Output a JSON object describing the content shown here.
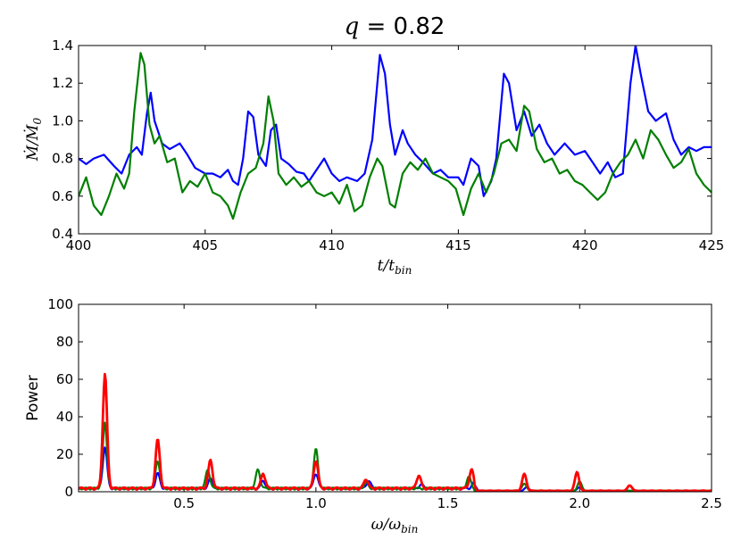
{
  "title": {
    "var": "q",
    "eq": " = ",
    "value": "0.82"
  },
  "colors": {
    "blue": "#0000ff",
    "green": "#007f00",
    "red": "#ff0000"
  },
  "chart_data": [
    {
      "type": "line",
      "xlabel": "t/t_bin",
      "ylabel": "Ṁ/Ṁ0",
      "xlim": [
        400,
        425
      ],
      "ylim": [
        0.4,
        1.4
      ],
      "xticks": [
        "400",
        "405",
        "410",
        "415",
        "420",
        "425"
      ],
      "yticks": [
        "0.4",
        "0.6",
        "0.8",
        "1.0",
        "1.2",
        "1.4"
      ],
      "grid": false,
      "series": [
        {
          "color": "#0000ff",
          "points": [
            [
              400,
              0.8
            ],
            [
              400.3,
              0.77
            ],
            [
              400.6,
              0.8
            ],
            [
              401,
              0.82
            ],
            [
              401.4,
              0.76
            ],
            [
              401.7,
              0.72
            ],
            [
              402.0,
              0.82
            ],
            [
              402.3,
              0.86
            ],
            [
              402.5,
              0.82
            ],
            [
              402.7,
              1.04
            ],
            [
              402.85,
              1.15
            ],
            [
              403.0,
              1.0
            ],
            [
              403.3,
              0.88
            ],
            [
              403.6,
              0.85
            ],
            [
              404.0,
              0.88
            ],
            [
              404.3,
              0.82
            ],
            [
              404.6,
              0.75
            ],
            [
              405.0,
              0.72
            ],
            [
              405.3,
              0.72
            ],
            [
              405.6,
              0.7
            ],
            [
              405.9,
              0.74
            ],
            [
              406.1,
              0.68
            ],
            [
              406.3,
              0.66
            ],
            [
              406.5,
              0.8
            ],
            [
              406.7,
              1.05
            ],
            [
              406.9,
              1.02
            ],
            [
              407.1,
              0.82
            ],
            [
              407.4,
              0.76
            ],
            [
              407.6,
              0.95
            ],
            [
              407.8,
              0.98
            ],
            [
              408.0,
              0.8
            ],
            [
              408.3,
              0.77
            ],
            [
              408.6,
              0.73
            ],
            [
              408.9,
              0.72
            ],
            [
              409.1,
              0.68
            ],
            [
              409.4,
              0.74
            ],
            [
              409.7,
              0.8
            ],
            [
              410.0,
              0.72
            ],
            [
              410.3,
              0.68
            ],
            [
              410.6,
              0.7
            ],
            [
              411.0,
              0.68
            ],
            [
              411.3,
              0.72
            ],
            [
              411.6,
              0.9
            ],
            [
              411.9,
              1.35
            ],
            [
              412.1,
              1.25
            ],
            [
              412.3,
              0.98
            ],
            [
              412.5,
              0.82
            ],
            [
              412.8,
              0.95
            ],
            [
              413.0,
              0.88
            ],
            [
              413.3,
              0.82
            ],
            [
              413.6,
              0.78
            ],
            [
              414.0,
              0.72
            ],
            [
              414.3,
              0.74
            ],
            [
              414.6,
              0.7
            ],
            [
              415.0,
              0.7
            ],
            [
              415.2,
              0.66
            ],
            [
              415.5,
              0.8
            ],
            [
              415.8,
              0.76
            ],
            [
              416.0,
              0.6
            ],
            [
              416.3,
              0.68
            ],
            [
              416.5,
              0.8
            ],
            [
              416.8,
              1.25
            ],
            [
              417.0,
              1.2
            ],
            [
              417.3,
              0.95
            ],
            [
              417.6,
              1.05
            ],
            [
              417.9,
              0.92
            ],
            [
              418.2,
              0.98
            ],
            [
              418.5,
              0.88
            ],
            [
              418.8,
              0.82
            ],
            [
              419.2,
              0.88
            ],
            [
              419.6,
              0.82
            ],
            [
              420.0,
              0.84
            ],
            [
              420.3,
              0.78
            ],
            [
              420.6,
              0.72
            ],
            [
              420.9,
              0.78
            ],
            [
              421.2,
              0.7
            ],
            [
              421.5,
              0.72
            ],
            [
              421.8,
              1.2
            ],
            [
              422.0,
              1.4
            ],
            [
              422.2,
              1.25
            ],
            [
              422.5,
              1.05
            ],
            [
              422.8,
              1.0
            ],
            [
              423.2,
              1.04
            ],
            [
              423.5,
              0.9
            ],
            [
              423.8,
              0.82
            ],
            [
              424.1,
              0.86
            ],
            [
              424.4,
              0.84
            ],
            [
              424.7,
              0.86
            ],
            [
              425.0,
              0.86
            ]
          ]
        },
        {
          "color": "#007f00",
          "points": [
            [
              400,
              0.6
            ],
            [
              400.3,
              0.7
            ],
            [
              400.6,
              0.55
            ],
            [
              400.9,
              0.5
            ],
            [
              401.2,
              0.6
            ],
            [
              401.5,
              0.72
            ],
            [
              401.8,
              0.64
            ],
            [
              402.0,
              0.72
            ],
            [
              402.2,
              1.05
            ],
            [
              402.45,
              1.36
            ],
            [
              402.6,
              1.3
            ],
            [
              402.8,
              0.98
            ],
            [
              403.0,
              0.88
            ],
            [
              403.2,
              0.92
            ],
            [
              403.5,
              0.78
            ],
            [
              403.8,
              0.8
            ],
            [
              404.1,
              0.62
            ],
            [
              404.4,
              0.68
            ],
            [
              404.7,
              0.65
            ],
            [
              405.0,
              0.72
            ],
            [
              405.3,
              0.62
            ],
            [
              405.6,
              0.6
            ],
            [
              405.9,
              0.55
            ],
            [
              406.1,
              0.48
            ],
            [
              406.4,
              0.62
            ],
            [
              406.7,
              0.72
            ],
            [
              407.0,
              0.75
            ],
            [
              407.3,
              0.88
            ],
            [
              407.5,
              1.13
            ],
            [
              407.7,
              1.0
            ],
            [
              407.9,
              0.72
            ],
            [
              408.2,
              0.66
            ],
            [
              408.5,
              0.7
            ],
            [
              408.8,
              0.65
            ],
            [
              409.1,
              0.68
            ],
            [
              409.4,
              0.62
            ],
            [
              409.7,
              0.6
            ],
            [
              410.0,
              0.62
            ],
            [
              410.3,
              0.56
            ],
            [
              410.6,
              0.66
            ],
            [
              410.9,
              0.52
            ],
            [
              411.2,
              0.55
            ],
            [
              411.5,
              0.7
            ],
            [
              411.8,
              0.8
            ],
            [
              412.0,
              0.76
            ],
            [
              412.3,
              0.56
            ],
            [
              412.5,
              0.54
            ],
            [
              412.8,
              0.72
            ],
            [
              413.1,
              0.78
            ],
            [
              413.4,
              0.74
            ],
            [
              413.7,
              0.8
            ],
            [
              414.0,
              0.72
            ],
            [
              414.3,
              0.7
            ],
            [
              414.6,
              0.68
            ],
            [
              414.9,
              0.64
            ],
            [
              415.2,
              0.5
            ],
            [
              415.5,
              0.64
            ],
            [
              415.8,
              0.72
            ],
            [
              416.1,
              0.62
            ],
            [
              416.4,
              0.72
            ],
            [
              416.7,
              0.88
            ],
            [
              417.0,
              0.9
            ],
            [
              417.3,
              0.84
            ],
            [
              417.6,
              1.08
            ],
            [
              417.8,
              1.05
            ],
            [
              418.1,
              0.85
            ],
            [
              418.4,
              0.78
            ],
            [
              418.7,
              0.8
            ],
            [
              419.0,
              0.72
            ],
            [
              419.3,
              0.74
            ],
            [
              419.6,
              0.68
            ],
            [
              419.9,
              0.66
            ],
            [
              420.2,
              0.62
            ],
            [
              420.5,
              0.58
            ],
            [
              420.8,
              0.62
            ],
            [
              421.1,
              0.72
            ],
            [
              421.4,
              0.78
            ],
            [
              421.7,
              0.82
            ],
            [
              422.0,
              0.9
            ],
            [
              422.3,
              0.8
            ],
            [
              422.6,
              0.95
            ],
            [
              422.9,
              0.9
            ],
            [
              423.2,
              0.82
            ],
            [
              423.5,
              0.75
            ],
            [
              423.8,
              0.78
            ],
            [
              424.1,
              0.85
            ],
            [
              424.4,
              0.72
            ],
            [
              424.7,
              0.66
            ],
            [
              425.0,
              0.62
            ]
          ]
        }
      ]
    },
    {
      "type": "line",
      "xlabel": "ω/ω_bin",
      "ylabel": "Power",
      "xlim": [
        0.1,
        2.5
      ],
      "ylim": [
        0,
        100
      ],
      "xticks": [
        "0.5",
        "1.0",
        "1.5",
        "2.0",
        "2.5"
      ],
      "yticks": [
        "0",
        "20",
        "40",
        "60",
        "80",
        "100"
      ],
      "grid": false,
      "series": [
        {
          "color": "#0000ff",
          "peaks": [
            [
              0.2,
              22
            ],
            [
              0.4,
              8
            ],
            [
              0.6,
              5
            ],
            [
              0.8,
              4
            ],
            [
              1.0,
              8
            ],
            [
              1.2,
              4
            ],
            [
              1.4,
              2
            ],
            [
              1.6,
              3
            ],
            [
              1.8,
              2
            ],
            [
              2.0,
              2
            ]
          ]
        },
        {
          "color": "#007f00",
          "peaks": [
            [
              0.2,
              35
            ],
            [
              0.4,
              15
            ],
            [
              0.59,
              10
            ],
            [
              0.78,
              10
            ],
            [
              1.0,
              21
            ],
            [
              1.19,
              3
            ],
            [
              1.58,
              6
            ],
            [
              1.79,
              4
            ],
            [
              2.0,
              5
            ]
          ]
        },
        {
          "color": "#ff0000",
          "peaks": [
            [
              0.2,
              61
            ],
            [
              0.4,
              26
            ],
            [
              0.6,
              15
            ],
            [
              0.8,
              8
            ],
            [
              1.0,
              15
            ],
            [
              1.19,
              5
            ],
            [
              1.39,
              7
            ],
            [
              1.59,
              10
            ],
            [
              1.79,
              9
            ],
            [
              1.99,
              10
            ],
            [
              2.19,
              3
            ]
          ]
        }
      ]
    }
  ]
}
